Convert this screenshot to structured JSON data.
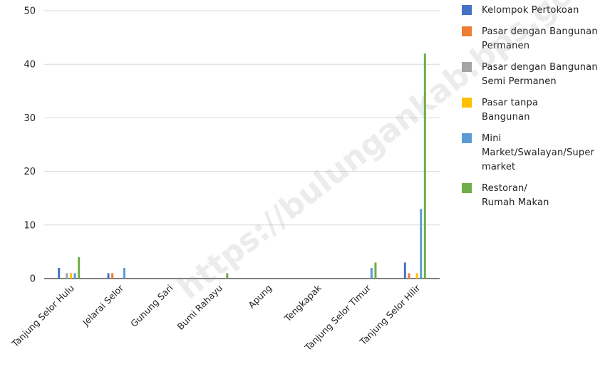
{
  "chart_data": {
    "type": "bar",
    "categories": [
      "Tanjung Selor Hulu",
      "Jelarai Selor",
      "Gunung Sari",
      "Bumi Rahayu",
      "Apung",
      "Tengkapak",
      "Tanjung Selor Timur",
      "Tanjung Selor Hilir"
    ],
    "series": [
      {
        "name": "Kelompok Pertokoan",
        "color": "#4472c4",
        "values": [
          2,
          1,
          0,
          0,
          0,
          0,
          0,
          3
        ]
      },
      {
        "name": "Pasar dengan Bangunan Permanen",
        "color": "#ed7d31",
        "values": [
          0,
          1,
          0,
          0,
          0,
          0,
          0,
          1
        ]
      },
      {
        "name": "Pasar dengan Bangunan Semi Permanen",
        "color": "#a5a5a5",
        "values": [
          1,
          0,
          0,
          0,
          0,
          0,
          0,
          0
        ]
      },
      {
        "name": "Pasar tanpa Bangunan",
        "color": "#ffc000",
        "values": [
          1,
          0,
          0,
          0,
          0,
          0,
          0,
          1
        ]
      },
      {
        "name": "Mini Market/Swalayan/Supermarket",
        "color": "#5b9bd5",
        "values": [
          1,
          2,
          0,
          0,
          0,
          0,
          2,
          13
        ]
      },
      {
        "name": "Restoran/ Rumah Makan",
        "color": "#70ad47",
        "values": [
          4,
          0,
          0,
          1,
          0,
          0,
          3,
          42
        ]
      }
    ],
    "legend_lines": [
      [
        "Kelompok Pertokoan"
      ],
      [
        "Pasar dengan Bangunan",
        "Permanen"
      ],
      [
        "Pasar dengan Bangunan",
        "Semi Permanen"
      ],
      [
        "Pasar tanpa",
        "Bangunan"
      ],
      [
        "Mini",
        "Market/Swalayan/Super",
        "market"
      ],
      [
        "Restoran/",
        "Rumah Makan"
      ]
    ],
    "yticks": [
      0,
      10,
      20,
      30,
      40,
      50
    ],
    "ylim": [
      0,
      50
    ],
    "grid": true,
    "legend_position": "right",
    "watermark": "https://bulungankab.bps.go.id"
  }
}
